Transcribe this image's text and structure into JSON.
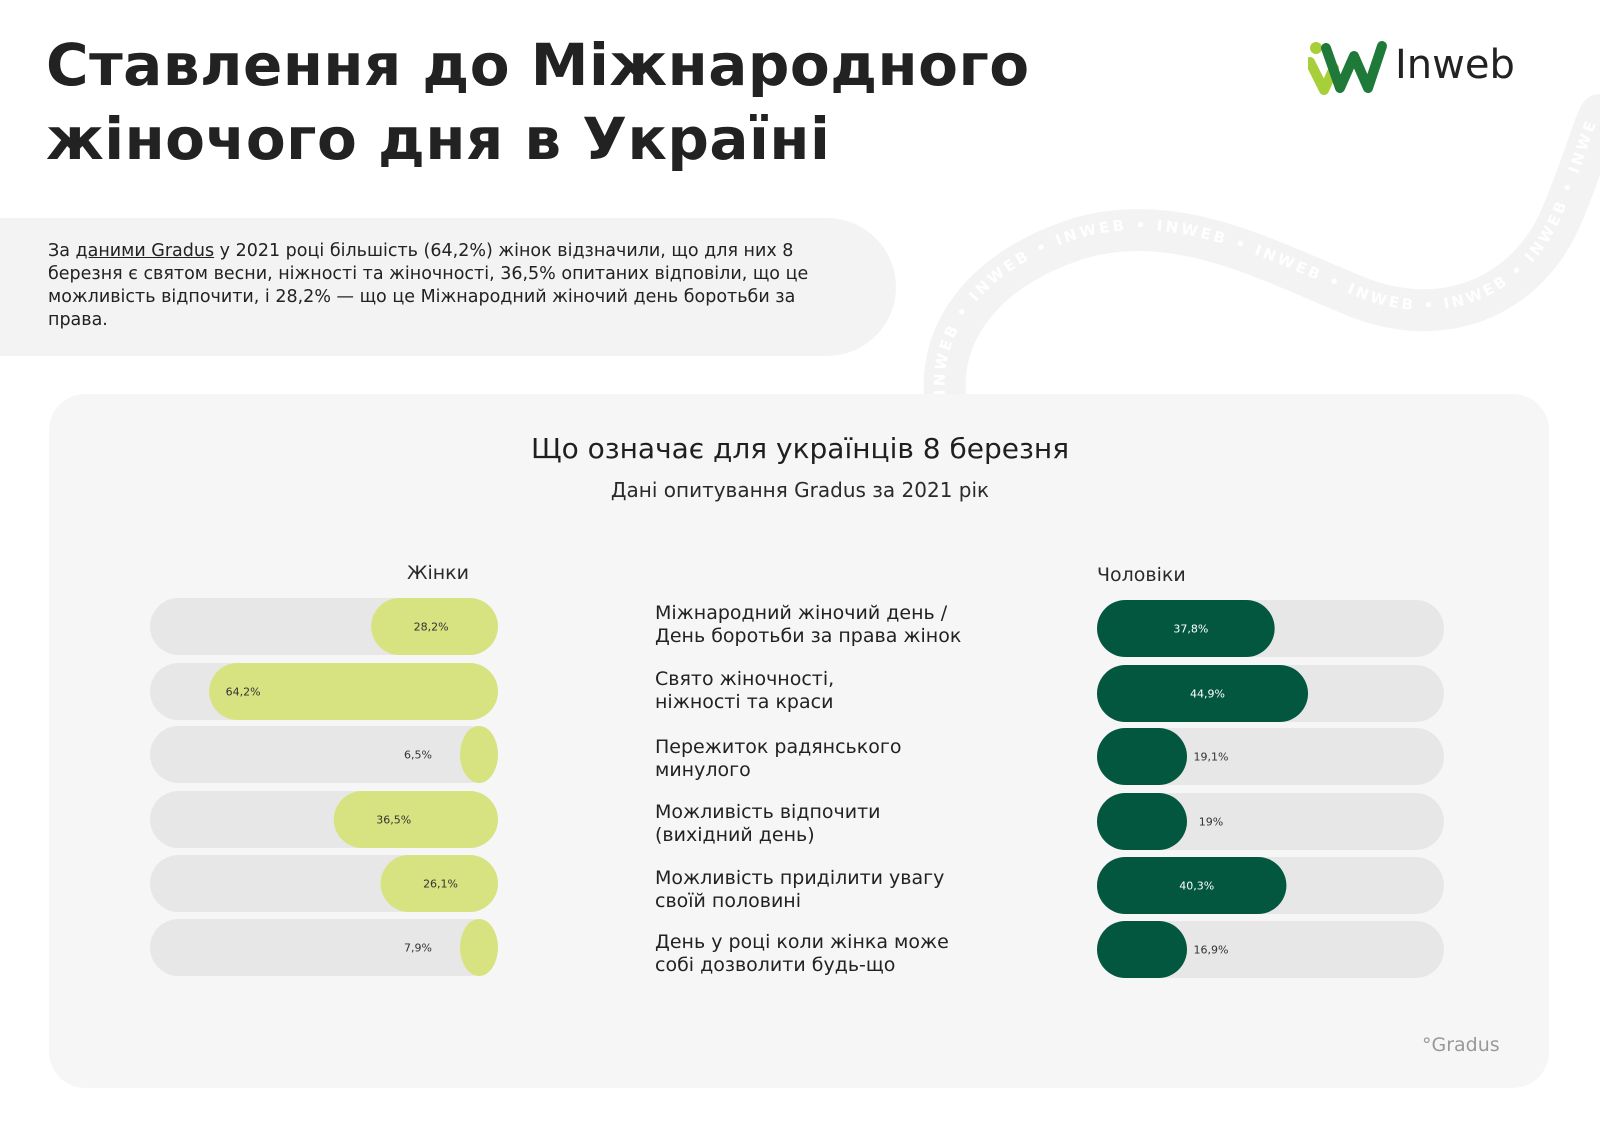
{
  "header": {
    "title_line1": "Ставлення до Міжнародного",
    "title_line2": "жіночого дня в Україні",
    "logo_text": "Inweb",
    "wave_text": "INWEB"
  },
  "intro": {
    "prefix": "За ",
    "link_text": "даними Gradus",
    "rest": " у 2021 році більшість (64,2%) жінок відзначили, що для них 8 березня є святом весни, ніжності та жіночності, 36,5% опитаних відповіли, що це можливість відпочити, і 28,2% — що це Міжнародний жіночий день боротьби за права."
  },
  "source": "°Gradus",
  "colors": {
    "women": "#d7e380",
    "men": "#03573f",
    "track": "#e8e7e7",
    "logo_green": "#1f7a3a",
    "logo_lime": "#a7cf3a"
  },
  "chart_data": {
    "type": "bar",
    "title": "Що означає для українців 8 березня",
    "subtitle": "Дані опитування Gradus за 2021 рік",
    "categories": [
      "Міжнародний жіночий день / День боротьби за права жінок",
      "Свято жіночності, ніжності та краси",
      "Пережиток радянського минулого",
      "Можливість відпочити (вихідний день)",
      "Можливість приділити увагу своїй половині",
      "День у році коли жінка може собі дозволити будь-що"
    ],
    "category_lines": [
      [
        "Міжнародний жіночий день /",
        "День боротьби за права жінок"
      ],
      [
        "Свято жіночності,",
        "ніжності та краси"
      ],
      [
        "Пережиток радянського",
        "минулого"
      ],
      [
        "Можливість відпочити",
        "(вихідний день)"
      ],
      [
        "Можливість приділити увагу",
        "своїй половині"
      ],
      [
        "День у році коли жінка може",
        "собі дозволити будь-що"
      ]
    ],
    "series": [
      {
        "name": "Жінки",
        "values": [
          28.2,
          64.2,
          6.5,
          36.5,
          26.1,
          7.9
        ],
        "labels": [
          "28,2%",
          "64,2%",
          "6,5%",
          "36,5%",
          "26,1%",
          "7,9%"
        ]
      },
      {
        "name": "Чоловіки",
        "values": [
          37.8,
          44.9,
          19.1,
          19.0,
          40.3,
          16.9
        ],
        "labels": [
          "37,8%",
          "44,9%",
          "19,1%",
          "19%",
          "40,3%",
          "16,9%"
        ]
      }
    ],
    "ylim": [
      0,
      100
    ]
  }
}
